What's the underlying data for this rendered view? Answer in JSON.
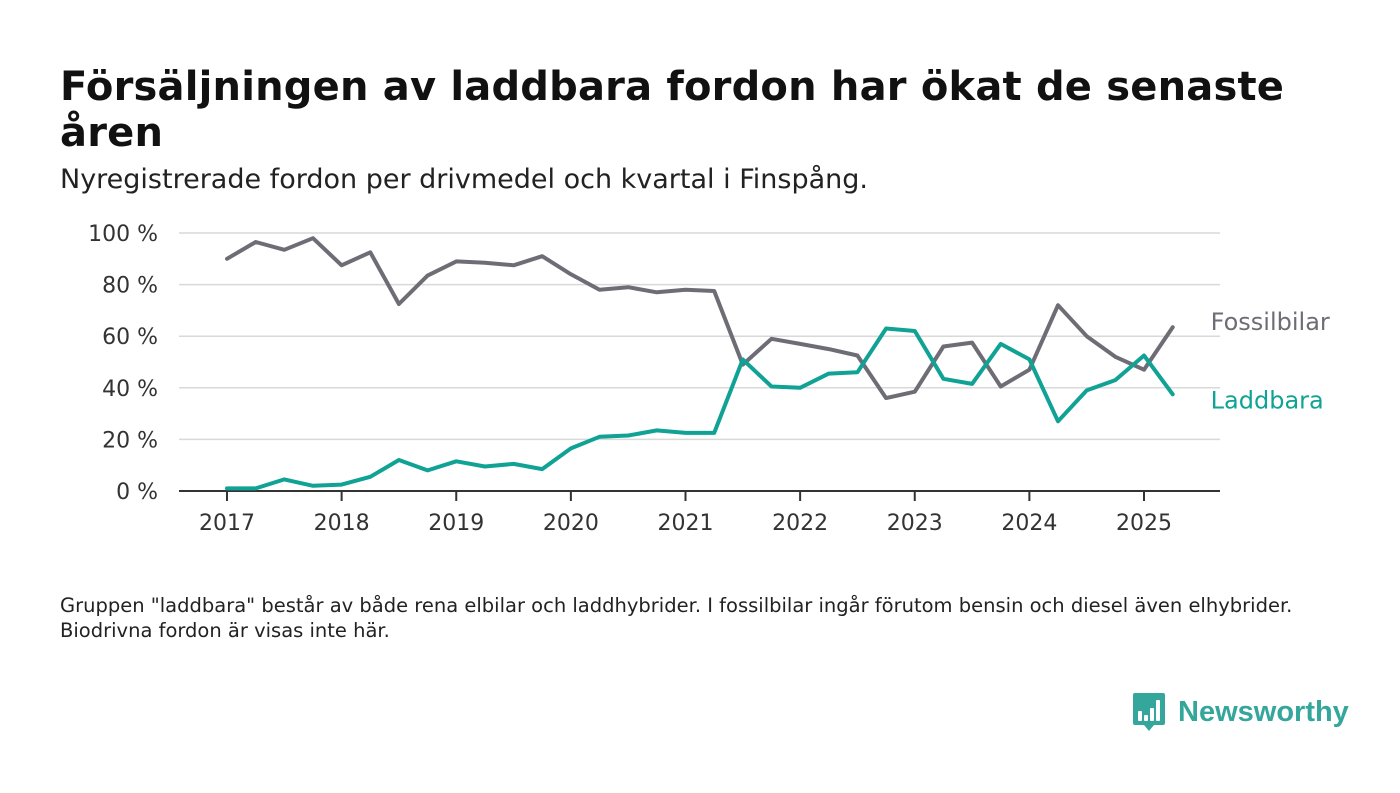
{
  "header": {
    "title": "Försäljningen av laddbara fordon har ökat de senaste åren",
    "subtitle": "Nyregistrerade fordon per drivmedel och kvartal i Finspång."
  },
  "footnote": "Gruppen \"laddbara\" består av både rena elbilar och laddhybrider. I fossilbilar ingår förutom bensin och diesel även elhybrider. Biodrivna fordon är visas inte här.",
  "brand": {
    "name": "Newsworthy",
    "icon": "newsworthy-chart-bubble-icon",
    "color": "#35a69b"
  },
  "chart_data": {
    "type": "line",
    "x_unit": "year (quarterly)",
    "x": [
      2017.0,
      2017.25,
      2017.5,
      2017.75,
      2018.0,
      2018.25,
      2018.5,
      2018.75,
      2019.0,
      2019.25,
      2019.5,
      2019.75,
      2020.0,
      2020.25,
      2020.5,
      2020.75,
      2021.0,
      2021.25,
      2021.5,
      2021.75,
      2022.0,
      2022.25,
      2022.5,
      2022.75,
      2023.0,
      2023.25,
      2023.5,
      2023.75,
      2024.0,
      2024.25,
      2024.5,
      2024.75,
      2025.0,
      2025.25
    ],
    "series": [
      {
        "name": "Fossilbilar",
        "color": "#6e6d75",
        "values": [
          90,
          96.5,
          93.5,
          98,
          87.5,
          92.5,
          72.5,
          83.5,
          89,
          88.5,
          87.5,
          91,
          84,
          78,
          79,
          77,
          78,
          77.5,
          49,
          59,
          57,
          55,
          52.5,
          36,
          38.5,
          56,
          57.5,
          40.5,
          47,
          72,
          60,
          52,
          47,
          63.5
        ]
      },
      {
        "name": "Laddbara",
        "color": "#0fa295",
        "values": [
          1,
          1,
          4.5,
          2,
          2.5,
          5.5,
          12,
          8,
          11.5,
          9.5,
          10.5,
          8.5,
          16.5,
          21,
          21.5,
          23.5,
          22.5,
          22.5,
          51,
          40.5,
          40,
          45.5,
          46,
          63,
          62,
          43.5,
          41.5,
          57,
          51,
          27,
          39,
          43,
          52.5,
          37.5
        ]
      }
    ],
    "y_ticks": [
      "0 %",
      "20 %",
      "40 %",
      "60 %",
      "80 %",
      "100 %"
    ],
    "y_tick_values": [
      0,
      20,
      40,
      60,
      80,
      100
    ],
    "x_ticks": [
      "2017",
      "2018",
      "2019",
      "2020",
      "2021",
      "2022",
      "2023",
      "2024",
      "2025"
    ],
    "x_tick_values": [
      2017,
      2018,
      2019,
      2020,
      2021,
      2022,
      2023,
      2024,
      2025
    ],
    "ylim": [
      0,
      100
    ],
    "grid": true,
    "legend": "direct labels at line ends",
    "gridline_color": "#d9d9d9",
    "axis_color": "#333333"
  }
}
